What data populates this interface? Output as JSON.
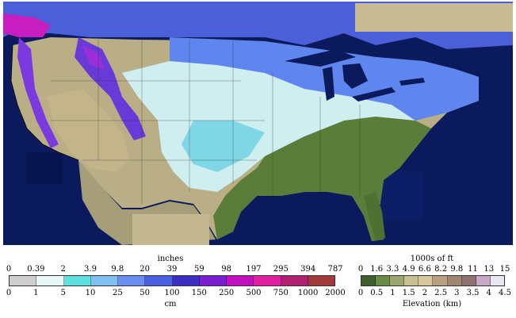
{
  "map": {
    "ocean_color": "#0a1a5c",
    "land_color": "#b9ae86",
    "snow_free_forest_color": "#5a7d3a"
  },
  "snow_legend": {
    "top_title": "inches",
    "bottom_title": "cm",
    "top_ticks": [
      "0",
      "0.39",
      "2",
      "3.9",
      "9.8",
      "20",
      "39",
      "59",
      "98",
      "197",
      "295",
      "394",
      "787"
    ],
    "bottom_ticks": [
      "0",
      "1",
      "5",
      "10",
      "25",
      "50",
      "100",
      "150",
      "250",
      "500",
      "750",
      "1000",
      "2000"
    ],
    "colors": [
      "#cfcfcf",
      "#e9f6f6",
      "#5fe0e0",
      "#7fc0f0",
      "#6a8ff0",
      "#4a5fe0",
      "#3a2fc0",
      "#7a1fd0",
      "#c010c0",
      "#e020a0",
      "#b02070",
      "#a03a3a"
    ]
  },
  "elevation_legend": {
    "top_title": "1000s of ft",
    "bottom_title": "Elevation (km)",
    "top_ticks": [
      "0",
      "1.6",
      "3.3",
      "4.9",
      "6.6",
      "8.2",
      "9.8",
      "11",
      "13",
      "15"
    ],
    "bottom_ticks": [
      "0",
      "0.5",
      "1",
      "1.5",
      "2",
      "2.5",
      "3",
      "3.5",
      "4",
      "4.5"
    ],
    "colors": [
      "#3f5f2f",
      "#6a8a4a",
      "#9aa870",
      "#c8c090",
      "#d8c8a0",
      "#b8a080",
      "#a08870",
      "#907070",
      "#c8a8c8",
      "#e8e8f0"
    ]
  }
}
